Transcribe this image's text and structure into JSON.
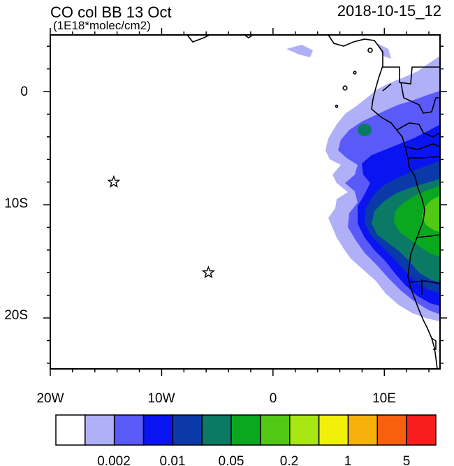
{
  "header": {
    "title": "CO col BB 13 Oct",
    "units": "(1E18*molec/cm2)",
    "datetime": "2018-10-15_12"
  },
  "map": {
    "lon_range": [
      -20,
      15
    ],
    "lat_range": [
      -24.5,
      5.0
    ],
    "x_tick_labels": [
      "20W",
      "10W",
      "0",
      "10E"
    ],
    "y_tick_labels": [
      "0",
      "10S",
      "20S"
    ],
    "markers": [
      {
        "symbol": "star",
        "lon": -14.3,
        "lat": -8.0
      },
      {
        "symbol": "star",
        "lon": -5.8,
        "lat": -16.0
      }
    ]
  },
  "colorbar": {
    "colors": [
      "#ffffff",
      "#b0b0f8",
      "#5a5af8",
      "#0a14f0",
      "#0a3aa8",
      "#0a7a64",
      "#0aa81e",
      "#50c814",
      "#a8e614",
      "#f0f00a",
      "#f8b00a",
      "#f86010",
      "#f81e1e"
    ],
    "labels": [
      "0.002",
      "0.01",
      "0.05",
      "0.2",
      "1",
      "5"
    ]
  }
}
